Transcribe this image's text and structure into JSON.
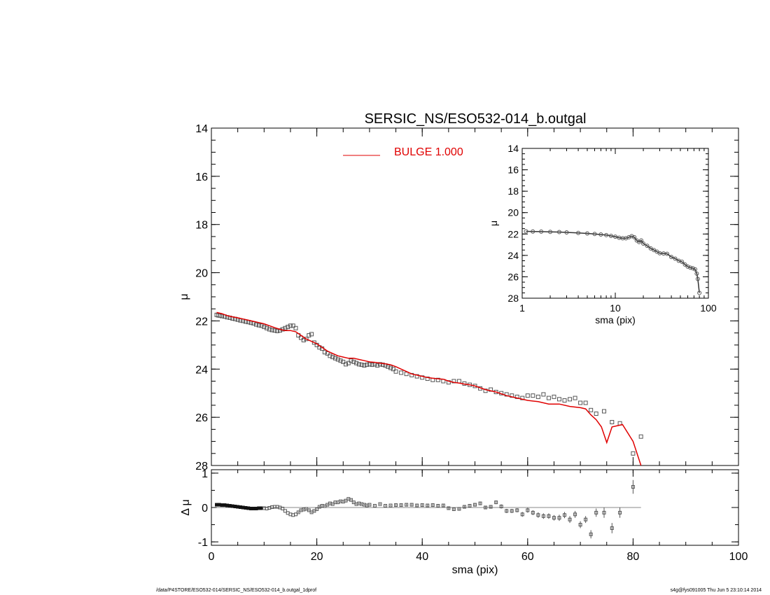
{
  "footer": {
    "path": "/data/P4STORE/ESO532-014/SERSIC_NS/ESO532-014_b.outgal_1dprof",
    "stamp": "s4g@fys091005  Thu Jun  5 23:10:14 2014"
  },
  "colors": {
    "model": "#e00000",
    "data": "#555555",
    "axis": "#000000",
    "zero_line": "#888888"
  },
  "chart_data": [
    {
      "id": "main",
      "type": "scatter",
      "title": "SERSIC_NS/ESO532-014_b.outgal",
      "xlabel": "",
      "ylabel": "μ",
      "xlim": [
        0,
        100
      ],
      "ylim": [
        28,
        14
      ],
      "xticks": [],
      "yticks": [
        14,
        16,
        18,
        20,
        22,
        24,
        26,
        28
      ],
      "legend": {
        "label": "BULGE  1.000",
        "placement": "top-center"
      },
      "series": [
        {
          "kind": "data-points",
          "x": [
            1.0,
            1.3,
            1.6,
            2.0,
            2.5,
            3.0,
            3.5,
            4.0,
            4.5,
            5.0,
            5.5,
            6.0,
            6.5,
            7.0,
            7.5,
            8.0,
            8.5,
            9.0,
            9.5,
            10.0,
            10.5,
            11.0,
            11.5,
            12.0,
            12.5,
            13.0,
            13.5,
            14.0,
            14.5,
            15.0,
            15.5,
            16.0,
            16.5,
            17.0,
            17.5,
            18.0,
            18.5,
            19.0,
            19.5,
            20.0,
            20.5,
            21.0,
            21.5,
            22.0,
            22.5,
            23.0,
            23.5,
            24.0,
            24.5,
            25.0,
            25.5,
            26.0,
            26.5,
            27.0,
            27.5,
            28.0,
            28.5,
            29.0,
            29.5,
            30.0,
            30.5,
            31.0,
            31.5,
            32.0,
            32.5,
            33.0,
            33.5,
            34.0,
            34.5,
            35.0,
            36.0,
            37.0,
            38.0,
            39.0,
            40.0,
            41.0,
            42.0,
            43.0,
            44.0,
            45.0,
            46.0,
            47.0,
            48.0,
            49.0,
            50.0,
            51.0,
            52.0,
            53.0,
            54.0,
            55.0,
            56.0,
            57.0,
            58.0,
            59.0,
            60.0,
            61.0,
            62.0,
            63.0,
            64.0,
            65.0,
            66.0,
            67.0,
            68.0,
            69.0,
            70.0,
            71.0,
            72.0,
            73.0,
            74.5,
            76.0,
            77.5,
            80.0,
            81.5
          ],
          "y": [
            21.75,
            21.77,
            21.78,
            21.8,
            21.82,
            21.85,
            21.87,
            21.9,
            21.92,
            21.95,
            21.98,
            22.0,
            22.03,
            22.05,
            22.08,
            22.1,
            22.15,
            22.18,
            22.2,
            22.25,
            22.3,
            22.35,
            22.38,
            22.4,
            22.42,
            22.4,
            22.35,
            22.3,
            22.25,
            22.2,
            22.2,
            22.3,
            22.6,
            22.7,
            22.8,
            22.75,
            22.6,
            22.55,
            22.9,
            23.0,
            23.1,
            23.15,
            23.3,
            23.35,
            23.45,
            23.5,
            23.55,
            23.6,
            23.65,
            23.7,
            23.8,
            23.75,
            23.65,
            23.7,
            23.75,
            23.8,
            23.82,
            23.85,
            23.82,
            23.8,
            23.82,
            23.8,
            23.85,
            23.8,
            23.82,
            23.85,
            23.9,
            23.95,
            24.0,
            24.1,
            24.15,
            24.2,
            24.25,
            24.3,
            24.35,
            24.4,
            24.45,
            24.45,
            24.5,
            24.55,
            24.5,
            24.5,
            24.6,
            24.65,
            24.7,
            24.8,
            24.9,
            24.85,
            24.95,
            25.0,
            25.05,
            25.1,
            25.15,
            25.2,
            25.1,
            25.1,
            25.15,
            25.05,
            25.2,
            25.15,
            25.25,
            25.3,
            25.25,
            25.2,
            25.4,
            25.4,
            25.7,
            25.85,
            25.75,
            26.2,
            26.25,
            27.5,
            26.8
          ]
        },
        {
          "kind": "model-line",
          "name": "BULGE  1.000",
          "x": [
            1,
            2,
            3,
            4,
            5,
            6,
            7,
            8,
            9,
            10,
            11,
            12,
            13,
            14,
            15,
            16,
            17,
            18,
            19,
            20,
            21,
            22,
            23,
            24,
            25,
            26,
            27,
            28,
            29,
            30,
            31,
            32,
            33,
            34,
            35,
            36,
            37,
            38,
            39,
            40,
            41,
            42,
            43,
            44,
            45,
            46,
            47,
            48,
            49,
            50,
            52,
            54,
            56,
            58,
            60,
            62,
            64,
            66,
            68,
            70,
            71,
            72,
            73,
            74,
            75,
            76,
            78,
            80,
            81.5
          ],
          "y": [
            21.65,
            21.7,
            21.78,
            21.83,
            21.87,
            21.92,
            21.97,
            22.02,
            22.07,
            22.12,
            22.2,
            22.28,
            22.35,
            22.4,
            22.4,
            22.45,
            22.6,
            22.75,
            22.85,
            22.95,
            23.1,
            23.25,
            23.35,
            23.45,
            23.5,
            23.55,
            23.55,
            23.6,
            23.65,
            23.7,
            23.72,
            23.75,
            23.78,
            23.82,
            23.9,
            24.0,
            24.1,
            24.2,
            24.25,
            24.3,
            24.35,
            24.38,
            24.4,
            24.42,
            24.5,
            24.55,
            24.58,
            24.62,
            24.65,
            24.7,
            24.85,
            24.95,
            25.1,
            25.2,
            25.3,
            25.35,
            25.45,
            25.45,
            25.55,
            25.6,
            25.65,
            25.9,
            26.1,
            26.4,
            27.05,
            26.4,
            26.3,
            27.0,
            28.0
          ]
        }
      ]
    },
    {
      "id": "inset",
      "type": "scatter",
      "title": "",
      "xlabel": "sma (pix)",
      "ylabel": "μ",
      "xscale": "log",
      "xlim": [
        1,
        100
      ],
      "ylim": [
        28,
        14
      ],
      "xticks": [
        1,
        10,
        100
      ],
      "yticks": [
        14,
        16,
        18,
        20,
        22,
        24,
        26,
        28
      ],
      "series": [
        {
          "kind": "data-points",
          "x": [
            1.1,
            1.3,
            1.6,
            2.0,
            2.5,
            3.0,
            4.0,
            5.0,
            6.0,
            7.0,
            8.0,
            9.0,
            10.0,
            11.0,
            12.0,
            13.0,
            14.0,
            15.0,
            16.0,
            17.0,
            18.0,
            19.0,
            20.0,
            22.0,
            24.0,
            26.0,
            28.0,
            30.0,
            33.0,
            36.0,
            40.0,
            44.0,
            48.0,
            52.0,
            56.0,
            60.0,
            64.0,
            68.0,
            72.0,
            75.0,
            77.0,
            80.0
          ],
          "y": [
            21.75,
            21.77,
            21.78,
            21.8,
            21.82,
            21.85,
            21.9,
            21.95,
            22.0,
            22.05,
            22.1,
            22.18,
            22.25,
            22.35,
            22.4,
            22.4,
            22.3,
            22.2,
            22.3,
            22.6,
            22.75,
            22.6,
            22.9,
            23.1,
            23.35,
            23.5,
            23.65,
            23.8,
            23.82,
            23.85,
            24.15,
            24.3,
            24.5,
            24.6,
            24.85,
            25.05,
            25.15,
            25.2,
            25.3,
            25.7,
            26.2,
            27.5
          ]
        }
      ]
    },
    {
      "id": "residual",
      "type": "scatter",
      "title": "",
      "xlabel": "sma (pix)",
      "ylabel": "Δ μ",
      "xlim": [
        0,
        100
      ],
      "ylim": [
        -1.1,
        1.1
      ],
      "xticks": [
        0,
        20,
        40,
        60,
        80,
        100
      ],
      "yticks": [
        -1,
        0,
        1
      ],
      "series": [
        {
          "kind": "residual-points",
          "x": [
            1.0,
            1.5,
            2.0,
            2.5,
            3.0,
            3.5,
            4.0,
            4.5,
            5.0,
            5.5,
            6.0,
            6.5,
            7.0,
            7.5,
            8.0,
            8.5,
            9.0,
            9.5,
            10.0,
            10.5,
            11.0,
            11.5,
            12.0,
            12.5,
            13.0,
            13.5,
            14.0,
            14.5,
            15.0,
            15.5,
            16.0,
            16.5,
            17.0,
            17.5,
            18.0,
            18.5,
            19.0,
            19.5,
            20.0,
            20.5,
            21.0,
            21.5,
            22.0,
            22.5,
            23.0,
            23.5,
            24.0,
            24.5,
            25.0,
            25.5,
            26.0,
            26.5,
            27.0,
            27.5,
            28.0,
            28.5,
            29.0,
            29.5,
            30.0,
            31.0,
            32.0,
            33.0,
            34.0,
            35.0,
            36.0,
            37.0,
            38.0,
            39.0,
            40.0,
            41.0,
            42.0,
            43.0,
            44.0,
            45.0,
            46.0,
            47.0,
            48.0,
            49.0,
            50.0,
            51.0,
            52.0,
            53.0,
            54.0,
            55.0,
            56.0,
            57.0,
            58.0,
            59.0,
            60.0,
            61.0,
            62.0,
            63.0,
            64.0,
            65.0,
            66.0,
            67.0,
            68.0,
            69.0,
            70.0,
            71.0,
            72.0,
            73.0,
            74.5,
            76.0,
            77.5,
            80.0
          ],
          "y": [
            0.08,
            0.08,
            0.07,
            0.07,
            0.06,
            0.05,
            0.04,
            0.03,
            0.02,
            0.01,
            0.0,
            -0.01,
            -0.02,
            -0.03,
            -0.03,
            -0.03,
            -0.02,
            -0.02,
            -0.02,
            -0.03,
            -0.01,
            0.01,
            0.02,
            0.02,
            0.0,
            -0.03,
            -0.1,
            -0.16,
            -0.2,
            -0.22,
            -0.2,
            -0.14,
            -0.08,
            -0.06,
            -0.04,
            -0.08,
            -0.14,
            -0.1,
            -0.05,
            0.02,
            0.05,
            0.04,
            0.08,
            0.12,
            0.1,
            0.15,
            0.15,
            0.18,
            0.17,
            0.2,
            0.25,
            0.22,
            0.15,
            0.1,
            0.12,
            0.1,
            0.08,
            0.06,
            0.08,
            0.05,
            0.1,
            0.05,
            0.06,
            0.07,
            0.07,
            0.08,
            0.08,
            0.06,
            0.07,
            0.06,
            0.07,
            0.05,
            0.06,
            -0.02,
            -0.05,
            -0.04,
            0.02,
            0.05,
            0.08,
            0.12,
            0.0,
            0.02,
            0.15,
            0.03,
            -0.1,
            -0.1,
            -0.08,
            -0.2,
            -0.08,
            -0.15,
            -0.22,
            -0.25,
            -0.25,
            -0.3,
            -0.3,
            -0.22,
            -0.35,
            -0.2,
            -0.5,
            -0.35,
            -0.78,
            -0.15,
            -0.15,
            -0.6,
            -0.15,
            0.6
          ],
          "errors": [
            0.01,
            0.01,
            0.01,
            0.01,
            0.01,
            0.01,
            0.01,
            0.01,
            0.01,
            0.01,
            0.01,
            0.01,
            0.01,
            0.01,
            0.01,
            0.01,
            0.01,
            0.01,
            0.01,
            0.01,
            0.01,
            0.01,
            0.01,
            0.01,
            0.01,
            0.01,
            0.01,
            0.01,
            0.01,
            0.01,
            0.01,
            0.02,
            0.02,
            0.02,
            0.02,
            0.02,
            0.02,
            0.02,
            0.02,
            0.02,
            0.02,
            0.02,
            0.02,
            0.02,
            0.02,
            0.02,
            0.02,
            0.02,
            0.02,
            0.02,
            0.02,
            0.02,
            0.02,
            0.02,
            0.02,
            0.02,
            0.02,
            0.02,
            0.02,
            0.02,
            0.02,
            0.02,
            0.02,
            0.03,
            0.03,
            0.03,
            0.03,
            0.03,
            0.03,
            0.03,
            0.03,
            0.03,
            0.03,
            0.04,
            0.04,
            0.04,
            0.04,
            0.04,
            0.04,
            0.05,
            0.05,
            0.05,
            0.05,
            0.06,
            0.06,
            0.06,
            0.06,
            0.07,
            0.07,
            0.07,
            0.08,
            0.08,
            0.08,
            0.08,
            0.09,
            0.09,
            0.1,
            0.1,
            0.1,
            0.1,
            0.12,
            0.12,
            0.15,
            0.15,
            0.15,
            0.2
          ]
        }
      ]
    }
  ]
}
